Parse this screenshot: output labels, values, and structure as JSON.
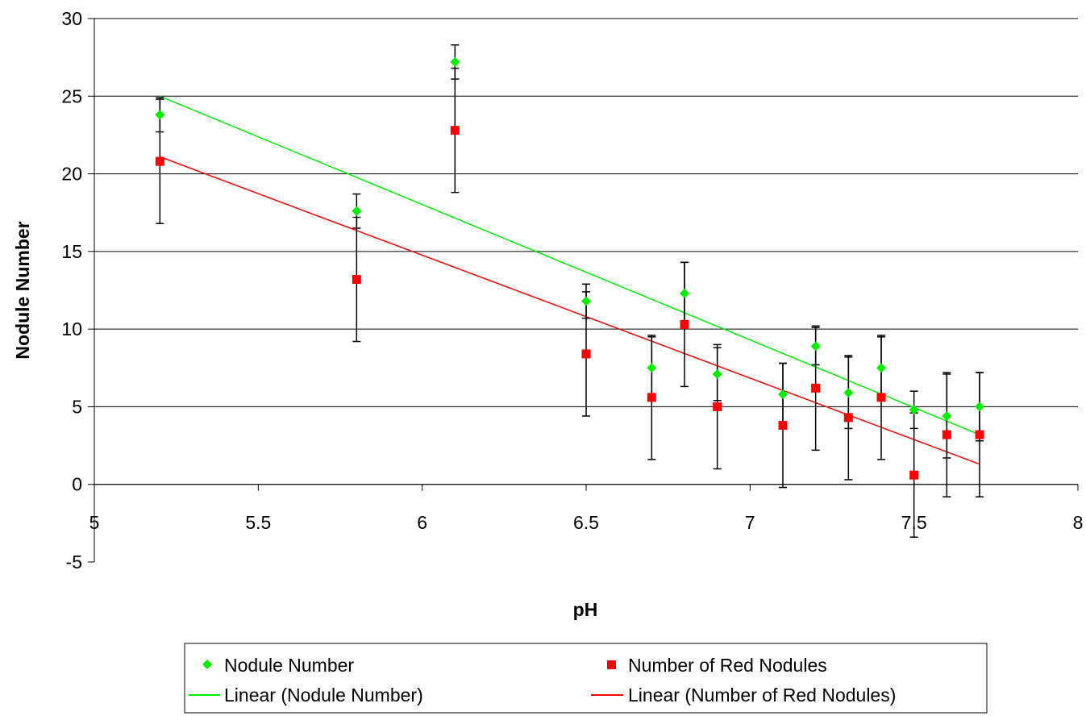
{
  "chart_data": {
    "type": "scatter",
    "title": "",
    "xlabel": "pH",
    "ylabel": "Nodule Number",
    "xlim": [
      5,
      8
    ],
    "ylim": [
      -5,
      30
    ],
    "xticks": [
      5,
      5.5,
      6,
      6.5,
      7,
      7.5,
      8
    ],
    "yticks": [
      -5,
      0,
      5,
      10,
      15,
      20,
      25,
      30
    ],
    "xtick_labels": [
      "5",
      "5.5",
      "6",
      "6.5",
      "7",
      "7.5",
      "8"
    ],
    "ytick_labels": [
      "-5",
      "0",
      "5",
      "10",
      "15",
      "20",
      "25",
      "30"
    ],
    "grid": "horizontal",
    "legend_position": "bottom",
    "series": [
      {
        "name": "Nodule Number",
        "marker": "diamond",
        "color": "#00ee00",
        "x": [
          5.2,
          5.8,
          6.1,
          6.5,
          6.7,
          6.8,
          6.9,
          7.1,
          7.2,
          7.3,
          7.4,
          7.5,
          7.6,
          7.7
        ],
        "y": [
          23.8,
          17.6,
          27.2,
          11.8,
          7.5,
          12.3,
          7.1,
          5.8,
          8.9,
          5.9,
          7.5,
          4.8,
          4.4,
          5.0
        ],
        "err": [
          1.1,
          1.1,
          1.1,
          1.1,
          2.0,
          2.0,
          1.7,
          2.0,
          1.2,
          2.3,
          2.0,
          1.2,
          2.7,
          2.2
        ]
      },
      {
        "name": "Number of Red Nodules",
        "marker": "square",
        "color": "#ff0000",
        "x": [
          5.2,
          5.8,
          6.1,
          6.5,
          6.7,
          6.8,
          6.9,
          7.1,
          7.2,
          7.3,
          7.4,
          7.5,
          7.6,
          7.7
        ],
        "y": [
          20.8,
          13.2,
          22.8,
          8.4,
          5.6,
          10.3,
          5.0,
          3.8,
          6.2,
          4.3,
          5.6,
          0.6,
          3.2,
          3.2
        ],
        "err": [
          4.0,
          4.0,
          4.0,
          4.0,
          4.0,
          4.0,
          4.0,
          4.0,
          4.0,
          4.0,
          4.0,
          4.0,
          4.0,
          4.0
        ]
      }
    ],
    "trendlines": [
      {
        "name": "Linear (Nodule Number)",
        "color": "#00ee00",
        "x": [
          5.2,
          7.7
        ],
        "y": [
          25.0,
          3.2
        ]
      },
      {
        "name": "Linear (Number of Red Nodules)",
        "color": "#ff0000",
        "x": [
          5.2,
          7.7
        ],
        "y": [
          21.1,
          1.3
        ]
      }
    ]
  }
}
